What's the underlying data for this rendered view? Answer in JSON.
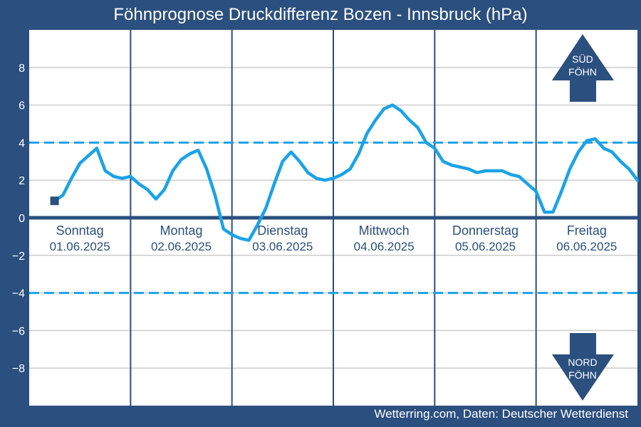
{
  "colors": {
    "background": "#2b4f7e",
    "plot_bg": "#ffffff",
    "line": "#1aa3e8",
    "threshold": "#1aa3e8",
    "day_separator": "#2b4f7e",
    "arrow": "#2b4f7e",
    "label": "#2b4f7e"
  },
  "credit": "Wetterring.com, Daten: Deutscher Wetterdienst",
  "arrows": {
    "sued": [
      "SÜD",
      "FÖHN"
    ],
    "nord": [
      "NORD",
      "FÖHN"
    ]
  },
  "chart_data": {
    "type": "line",
    "title": "Föhnprognose Druckdifferenz Bozen - Innsbruck (hPa)",
    "ylim": [
      -10,
      10
    ],
    "yticks": [
      8,
      6,
      4,
      2,
      0,
      -2,
      -4,
      -6,
      -8
    ],
    "ytick_labels": [
      "8",
      "6",
      "4",
      "2",
      "0",
      "−2",
      "−4",
      "−6",
      "−8"
    ],
    "xlim": [
      0,
      144
    ],
    "days": [
      {
        "weekday": "Sonntag",
        "date": "01.06.2025"
      },
      {
        "weekday": "Montag",
        "date": "02.06.2025"
      },
      {
        "weekday": "Dienstag",
        "date": "03.06.2025"
      },
      {
        "weekday": "Mittwoch",
        "date": "04.06.2025"
      },
      {
        "weekday": "Donnerstag",
        "date": "05.06.2025"
      },
      {
        "weekday": "Freitag",
        "date": "06.06.2025"
      }
    ],
    "thresholds": [
      4,
      -4
    ],
    "grid": true,
    "series": [
      {
        "start_marker": true,
        "x": [
          6,
          8,
          10,
          12,
          14,
          16,
          18,
          20,
          22,
          24,
          26,
          28,
          30,
          32,
          34,
          36,
          38,
          40,
          42,
          44,
          46,
          48,
          50,
          52,
          54,
          56,
          58,
          60,
          62,
          64,
          66,
          68,
          70,
          72,
          74,
          76,
          78,
          80,
          82,
          84,
          86,
          88,
          90,
          92,
          94,
          96,
          98,
          100,
          102,
          104,
          106,
          108,
          110,
          112,
          114,
          116,
          118,
          120,
          122,
          124,
          126,
          128,
          130,
          132,
          134,
          136,
          138,
          140,
          142,
          144
        ],
        "y": [
          0.9,
          1.2,
          2.1,
          2.9,
          3.3,
          3.7,
          2.5,
          2.2,
          2.1,
          2.2,
          1.8,
          1.5,
          1.0,
          1.5,
          2.5,
          3.1,
          3.4,
          3.6,
          2.6,
          1.2,
          -0.6,
          -0.9,
          -1.1,
          -1.2,
          -0.4,
          0.5,
          1.8,
          3.0,
          3.5,
          3.0,
          2.4,
          2.1,
          2.0,
          2.1,
          2.3,
          2.6,
          3.4,
          4.5,
          5.2,
          5.8,
          6.0,
          5.7,
          5.2,
          4.8,
          4.0,
          3.7,
          3.0,
          2.8,
          2.7,
          2.6,
          2.4,
          2.5,
          2.5,
          2.5,
          2.3,
          2.2,
          1.8,
          1.4,
          0.3,
          0.3,
          1.4,
          2.6,
          3.5,
          4.1,
          4.2,
          3.7,
          3.5,
          3.0,
          2.6,
          2.0
        ]
      }
    ]
  }
}
